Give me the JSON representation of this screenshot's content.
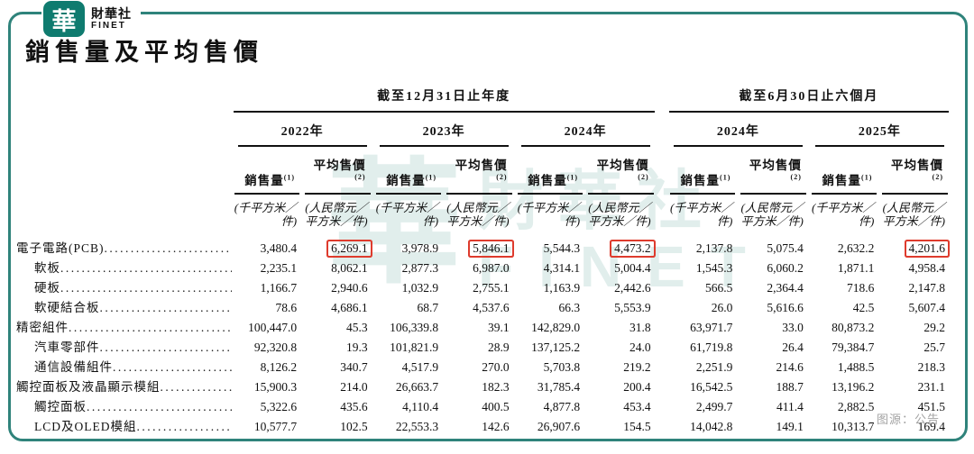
{
  "brand": {
    "logo_char": "華",
    "name_zh": "財華社",
    "name_en": "FINET"
  },
  "title": "銷售量及平均售價",
  "watermark": {
    "logo_char": "華",
    "text_zh": "財華社",
    "text_en": "FINET"
  },
  "source_note": "图源：公告",
  "colors": {
    "frame_teal": "#2f837b",
    "badge_teal": "#0f7b6f",
    "highlight_red": "#de3b2d",
    "text": "#111111",
    "muted": "#a3a3a3",
    "watermark": "rgba(26,122,112,0.13)"
  },
  "table": {
    "groups": [
      {
        "period": "截至12月31日止年度",
        "years": [
          "2022年",
          "2023年",
          "2024年"
        ]
      },
      {
        "period": "截至6月30日止六個月",
        "years": [
          "2024年",
          "2025年"
        ]
      }
    ],
    "col_headers": {
      "volume": {
        "label": "銷售量",
        "sup": "(1)"
      },
      "price": {
        "label": "平均售價",
        "sup": "(2)"
      }
    },
    "units": {
      "volume": [
        "(千平方米／",
        "件)"
      ],
      "price": [
        "(人民幣元／",
        "平方米／件)"
      ]
    },
    "rows": [
      {
        "label": "電子電路(PCB)",
        "indent": false,
        "values": [
          "3,480.4",
          "6,269.1",
          "3,978.9",
          "5,846.1",
          "5,544.3",
          "4,473.2",
          "2,137.8",
          "5,075.4",
          "2,632.2",
          "4,201.6"
        ],
        "highlight": [
          1,
          3,
          5,
          9
        ]
      },
      {
        "label": "軟板",
        "indent": true,
        "values": [
          "2,235.1",
          "8,062.1",
          "2,877.3",
          "6,987.0",
          "4,314.1",
          "5,004.4",
          "1,545.3",
          "6,060.2",
          "1,871.1",
          "4,958.4"
        ]
      },
      {
        "label": "硬板",
        "indent": true,
        "values": [
          "1,166.7",
          "2,940.6",
          "1,032.9",
          "2,755.1",
          "1,163.9",
          "2,442.6",
          "566.5",
          "2,364.4",
          "718.6",
          "2,147.8"
        ]
      },
      {
        "label": "軟硬結合板",
        "indent": true,
        "values": [
          "78.6",
          "4,686.1",
          "68.7",
          "4,537.6",
          "66.3",
          "5,553.9",
          "26.0",
          "5,616.6",
          "42.5",
          "5,607.4"
        ]
      },
      {
        "label": "精密組件",
        "indent": false,
        "values": [
          "100,447.0",
          "45.3",
          "106,339.8",
          "39.1",
          "142,829.0",
          "31.8",
          "63,971.7",
          "33.0",
          "80,873.2",
          "29.2"
        ]
      },
      {
        "label": "汽車零部件",
        "indent": true,
        "values": [
          "92,320.8",
          "19.3",
          "101,821.9",
          "28.9",
          "137,125.2",
          "24.0",
          "61,719.8",
          "26.4",
          "79,384.7",
          "25.7"
        ]
      },
      {
        "label": "通信設備組件",
        "indent": true,
        "values": [
          "8,126.2",
          "340.7",
          "4,517.9",
          "270.0",
          "5,703.8",
          "219.2",
          "2,251.9",
          "214.6",
          "1,488.5",
          "218.3"
        ]
      },
      {
        "label": "觸控面板及液晶顯示模組",
        "indent": false,
        "values": [
          "15,900.3",
          "214.0",
          "26,663.7",
          "182.3",
          "31,785.4",
          "200.4",
          "16,542.5",
          "188.7",
          "13,196.2",
          "231.1"
        ]
      },
      {
        "label": "觸控面板",
        "indent": true,
        "values": [
          "5,322.6",
          "435.6",
          "4,110.4",
          "400.5",
          "4,877.8",
          "453.4",
          "2,499.7",
          "411.4",
          "2,882.5",
          "451.5"
        ]
      },
      {
        "label": "LCD及OLED模組",
        "indent": true,
        "values": [
          "10,577.7",
          "102.5",
          "22,553.3",
          "142.6",
          "26,907.6",
          "154.5",
          "14,042.8",
          "149.1",
          "10,313.7",
          "169.4"
        ]
      }
    ]
  }
}
